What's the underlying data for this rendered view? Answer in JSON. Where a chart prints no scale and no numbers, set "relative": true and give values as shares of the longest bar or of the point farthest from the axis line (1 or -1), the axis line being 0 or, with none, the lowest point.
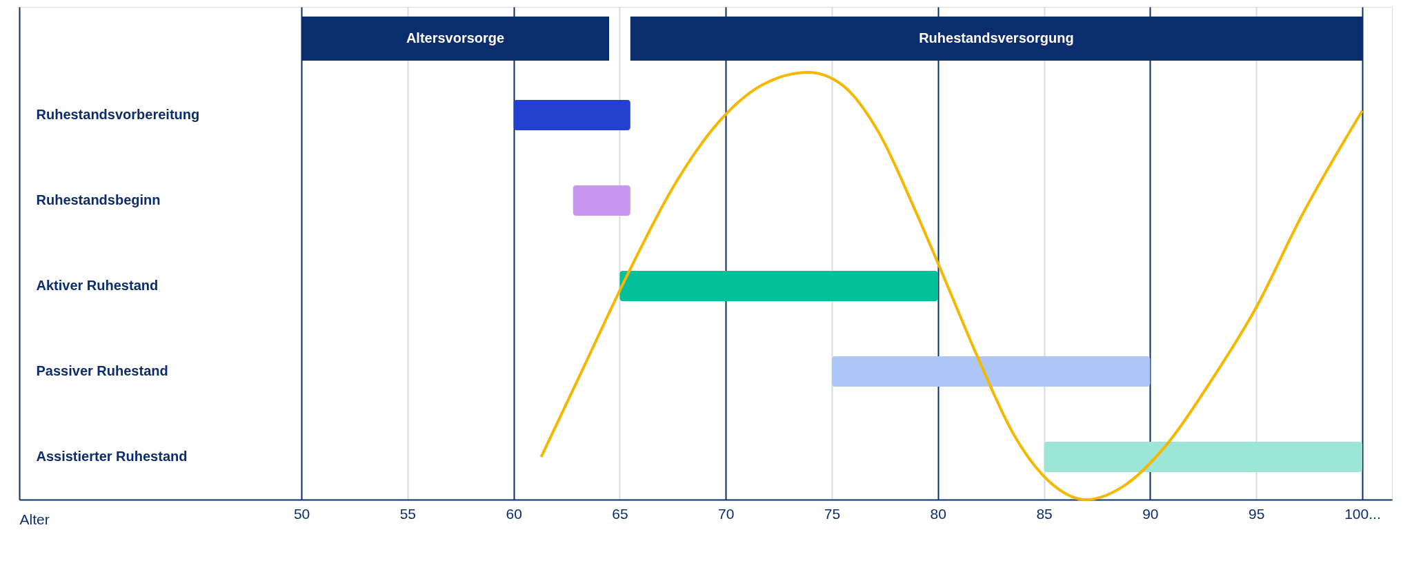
{
  "chart_data": [
    {
      "type": "bar",
      "orientation": "horizontal",
      "xlabel": "Alter",
      "categories": [
        "Ruhestandsvorbereitung",
        "Ruhestandsbeginn",
        "Aktiver Ruhestand",
        "Passiver Ruhestand",
        "Assistierter Ruhestand"
      ],
      "base": [
        60,
        62.8,
        65,
        75,
        85
      ],
      "values": [
        5.5,
        2.7,
        15,
        15,
        15
      ],
      "colors": [
        "#2340d0",
        "#c896f0",
        "#03bf9a",
        "#adc8f8",
        "#9de5d6"
      ],
      "xlim": [
        36.7,
        101.4
      ],
      "xticks": [
        50,
        55,
        60,
        65,
        70,
        75,
        80,
        85,
        90,
        95,
        {
          "value": 100,
          "label": "100..."
        }
      ],
      "bands": [
        {
          "axis": "x",
          "from": 50,
          "to": 64.5,
          "label": "Altersvorsorge",
          "color": "#0b2d6e"
        },
        {
          "axis": "x",
          "from": 65.5,
          "to": 100,
          "label": "Ruhestandsversorgung",
          "color": "#0b2d6e"
        }
      ],
      "grid": "x",
      "legend": false
    },
    {
      "type": "line",
      "relative": true,
      "tick_labels": false,
      "xlim": [
        36.7,
        101.4
      ],
      "series": [
        {
          "color": "#f5b800",
          "x": [
            61.3,
            63.3,
            65.4,
            67.5,
            69.6,
            71.7,
            73.9,
            75.5,
            77.2,
            78.9,
            80.2,
            81.9,
            83.6,
            85.3,
            87.0,
            88.7,
            90.8,
            92.9,
            95.0,
            97.1,
            100
          ],
          "values": [
            0.1,
            0.31,
            0.53,
            0.73,
            0.88,
            0.97,
            1.0,
            0.97,
            0.86,
            0.68,
            0.53,
            0.33,
            0.15,
            0.04,
            0.0,
            0.03,
            0.13,
            0.28,
            0.45,
            0.66,
            0.91
          ]
        }
      ]
    }
  ]
}
